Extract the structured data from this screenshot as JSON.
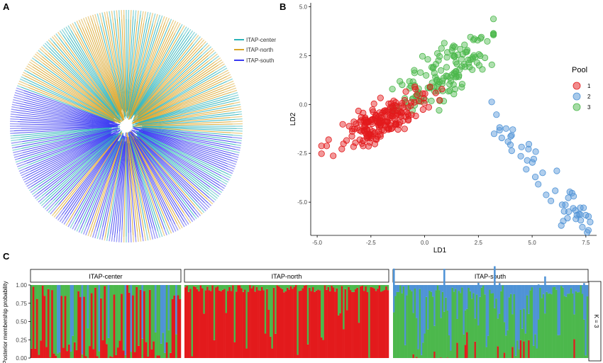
{
  "panels": {
    "a": "A",
    "b": "B",
    "c": "C"
  },
  "colors": {
    "center": "#2ab3b8",
    "north": "#d9a528",
    "south": "#3a3af2",
    "pool1": "#e31a1c",
    "pool2": "#4f93d6",
    "pool3": "#4cb84c"
  },
  "chart_data": [
    {
      "type": "tree",
      "legend": [
        {
          "name": "ITAP-center",
          "color": "#2ab3b8"
        },
        {
          "name": "ITAP-north",
          "color": "#d9a528"
        },
        {
          "name": "ITAP-south",
          "color": "#3a3af2"
        }
      ]
    },
    {
      "type": "scatter",
      "xlabel": "LD1",
      "ylabel": "LD2",
      "xlim": [
        -5.3,
        8.0
      ],
      "ylim": [
        -6.7,
        5.2
      ],
      "xticks": [
        -5.0,
        -2.5,
        0.0,
        2.5,
        5.0,
        7.5
      ],
      "xtick_labels": [
        "-5.0",
        "-2.5",
        "0.0",
        "2.5",
        "5.0",
        "7.5"
      ],
      "yticks": [
        5.0,
        2.5,
        0.0,
        -2.5,
        -5.0
      ],
      "ytick_labels": [
        "5.0",
        "2.5",
        "0.0",
        "-2.5",
        "-5.0"
      ],
      "legend_title": "Pool",
      "legend_position": "right",
      "series": [
        {
          "name": "1",
          "color": "#e31a1c",
          "center": [
            -2.0,
            -1.0
          ],
          "n": 190
        },
        {
          "name": "2",
          "color": "#4f93d6",
          "center": [
            4.6,
            -3.3
          ],
          "n": 55
        },
        {
          "name": "3",
          "color": "#4cb84c",
          "center": [
            0.8,
            1.7
          ],
          "n": 140
        }
      ]
    },
    {
      "type": "bar",
      "stacked": true,
      "ylabel": "Posterior membership probability",
      "ylim": [
        0,
        1
      ],
      "yticks": [
        1.0,
        0.75,
        0.5,
        0.25,
        0.0
      ],
      "ytick_labels": [
        "1.00",
        "0.75",
        "0.50",
        "0.25",
        "0.00"
      ],
      "strip_label": "K = 3",
      "facets": [
        {
          "name": "ITAP-center",
          "n": 80
        },
        {
          "name": "ITAP-north",
          "n": 120
        },
        {
          "name": "ITAP-south",
          "n": 120
        }
      ]
    }
  ]
}
